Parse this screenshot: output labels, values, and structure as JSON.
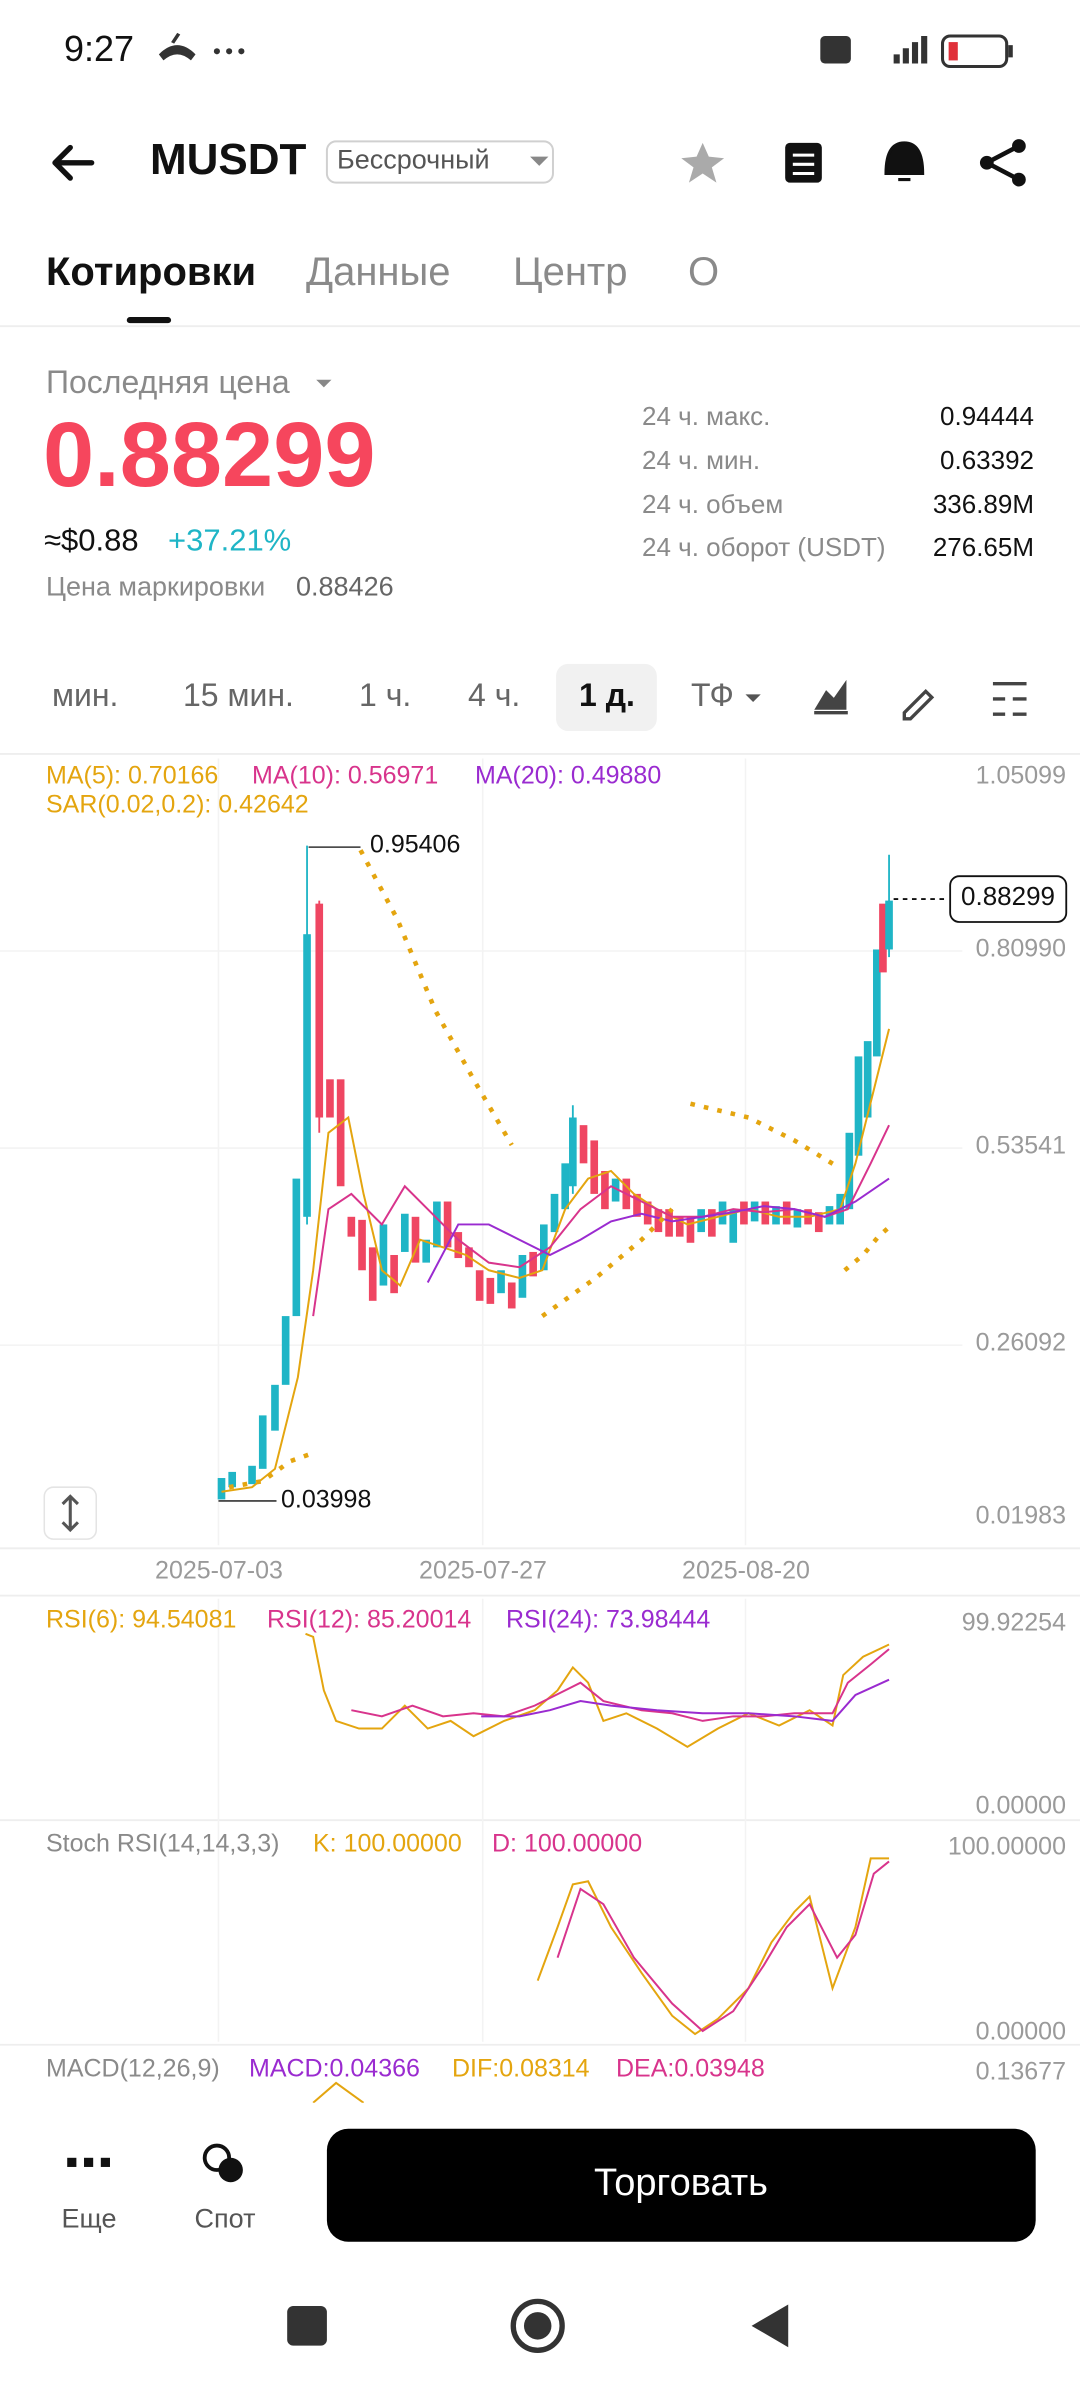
{
  "status_bar": {
    "time": "9:27"
  },
  "header": {
    "symbol": "MUSDT",
    "badge": "Бессрочный"
  },
  "tabs": [
    "Котировки",
    "Данные",
    "Центр",
    "О"
  ],
  "price": {
    "label": "Последняя цена",
    "last": "0.88299",
    "approx": "≈$0.88",
    "change": "+37.21%",
    "mark_label": "Цена маркировки",
    "mark_price": "0.88426"
  },
  "stats": [
    {
      "label": "24 ч. макс.",
      "value": "0.94444"
    },
    {
      "label": "24 ч. мин.",
      "value": "0.63392"
    },
    {
      "label": "24 ч. объем",
      "value": "336.89M"
    },
    {
      "label": "24 ч. оборот (USDT)",
      "value": "276.65M"
    }
  ],
  "intervals": [
    "мин.",
    "15 мин.",
    "1 ч.",
    "4 ч.",
    "1 д.",
    "ТФ"
  ],
  "chart": {
    "legend": [
      "MA(5): 0.70166",
      "MA(10): 0.56971",
      "MA(20): 0.49880",
      "SAR(0.02,0.2): 0.42642"
    ],
    "y_labels": [
      "1.05099",
      "0.80990",
      "0.53541",
      "0.26092",
      "0.01983"
    ],
    "current": "0.88299",
    "x_labels": [
      "2025-07-03",
      "2025-07-27",
      "2025-08-20"
    ],
    "high": "0.95406",
    "low": "0.03998"
  },
  "rsi": {
    "legend": [
      "RSI(6): 94.54081",
      "RSI(12): 85.20014",
      "RSI(24): 73.98444"
    ],
    "y_labels": [
      "99.92254",
      "0.00000"
    ]
  },
  "stoch": {
    "legend": [
      "Stoch RSI(14,14,3,3)",
      "K: 100.00000",
      "D: 100.00000"
    ],
    "y_labels": [
      "100.00000",
      "0.00000"
    ]
  },
  "macd": {
    "legend": [
      "MACD(12,26,9)",
      "MACD:0.04366",
      "DIF:0.08314",
      "DEA:0.03948"
    ],
    "y_labels": [
      "0.13677"
    ]
  },
  "bottom": {
    "more": "Еще",
    "spot": "Спот",
    "trade": "Торговать"
  }
}
